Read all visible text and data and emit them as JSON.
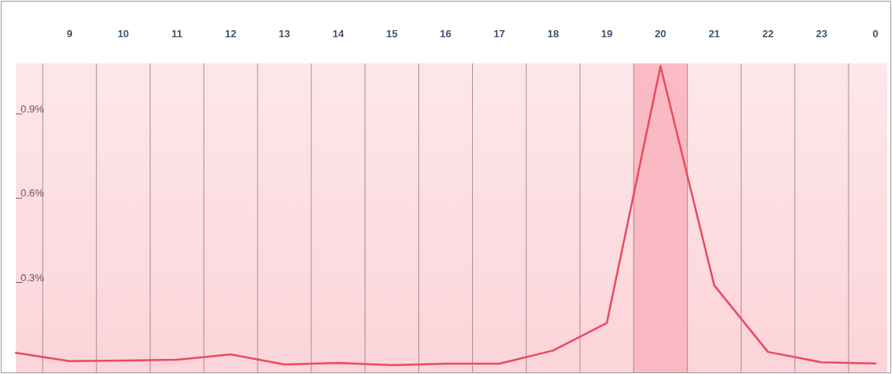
{
  "chart_data": {
    "type": "line",
    "categories": [
      null,
      "9",
      "10",
      "11",
      "12",
      "13",
      "14",
      "15",
      "16",
      "17",
      "18",
      "19",
      "20",
      "21",
      "22",
      "23",
      "0"
    ],
    "series": [
      {
        "color": "#ec4a5e",
        "values": [
          0.05,
          0.02,
          0.022,
          0.025,
          0.044,
          0.008,
          0.014,
          0.006,
          0.011,
          0.011,
          0.058,
          0.156,
          1.07,
          0.29,
          0.053,
          0.016,
          0.012
        ]
      }
    ],
    "ylim": [
      -0.02,
      1.08
    ],
    "yticks": [
      {
        "value": 0.3,
        "label": "0.3%"
      },
      {
        "value": 0.6,
        "label": "0.6%"
      },
      {
        "value": 0.9,
        "label": "0.9%"
      }
    ],
    "grid": "x",
    "marker": "none",
    "line_style": "solid",
    "bands": [
      {
        "axis": "x",
        "from": "20",
        "to": "20",
        "color": "#f9b3bd"
      }
    ]
  }
}
